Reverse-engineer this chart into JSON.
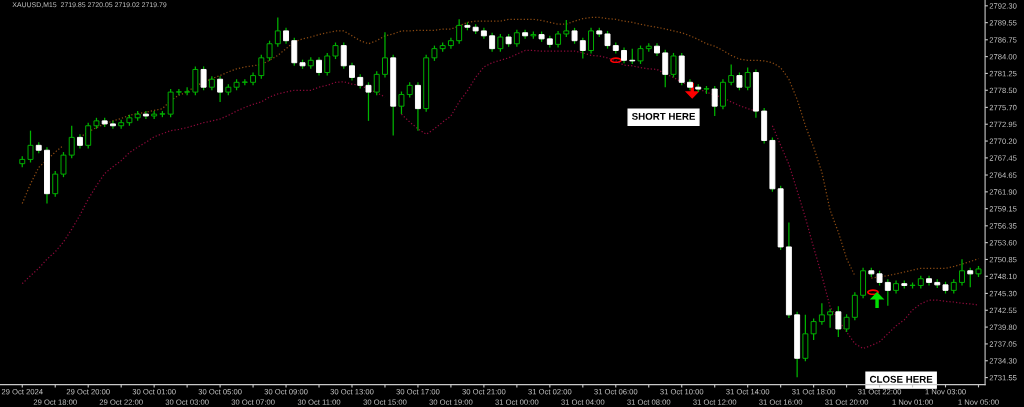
{
  "chart_data": {
    "type": "candlestick",
    "title": "XAUUSD,M15  2719.85 2720.05 2719.02 2719.79",
    "categories": [
      "29 Oct 2024",
      null,
      null,
      null,
      "29 Oct 18:00",
      null,
      null,
      null,
      "29 Oct 20:00",
      null,
      null,
      null,
      "29 Oct 22:00",
      null,
      null,
      null,
      "30 Oct 01:00",
      null,
      null,
      null,
      "30 Oct 03:00",
      null,
      null,
      null,
      "30 Oct 05:00",
      null,
      null,
      null,
      "30 Oct 07:00",
      null,
      null,
      null,
      "30 Oct 09:00",
      null,
      null,
      null,
      "30 Oct 11:00",
      null,
      null,
      null,
      "30 Oct 13:00",
      null,
      null,
      null,
      "30 Oct 15:00",
      null,
      null,
      null,
      "30 Oct 17:00",
      null,
      null,
      null,
      "30 Oct 19:00",
      null,
      null,
      null,
      "30 Oct 21:00",
      null,
      null,
      null,
      "31 Oct 00:00",
      null,
      null,
      null,
      "31 Oct 02:00",
      null,
      null,
      null,
      "31 Oct 04:00",
      null,
      null,
      null,
      "31 Oct 06:00",
      null,
      null,
      null,
      "31 Oct 08:00",
      null,
      null,
      null,
      "31 Oct 10:00",
      null,
      null,
      null,
      "31 Oct 12:00",
      null,
      null,
      null,
      "31 Oct 14:00",
      null,
      null,
      null,
      "31 Oct 16:00",
      null,
      null,
      null,
      "31 Oct 18:00",
      null,
      null,
      null,
      "31 Oct 20:00",
      null,
      null,
      null,
      "31 Oct 22:00",
      null,
      null,
      null,
      "1 Nov 01:00",
      null,
      null,
      null,
      "1 Nov 03:00",
      null,
      null,
      null,
      "1 Nov 05:00"
    ],
    "ohlc": [
      [
        2766.5,
        2767.7,
        2765.9,
        2767.2
      ],
      [
        2767.2,
        2771.9,
        2766.7,
        2769.5
      ],
      [
        2769.5,
        2770.0,
        2768.2,
        2768.7
      ],
      [
        2768.7,
        2769.2,
        2760.0,
        2761.6
      ],
      [
        2761.6,
        2765.3,
        2761.1,
        2764.8
      ],
      [
        2764.8,
        2768.4,
        2764.3,
        2767.9
      ],
      [
        2767.9,
        2772.7,
        2767.4,
        2770.8
      ],
      [
        2770.8,
        2771.3,
        2769.0,
        2769.5
      ],
      [
        2769.5,
        2773.2,
        2769.0,
        2772.7
      ],
      [
        2772.7,
        2774.0,
        2772.2,
        2773.5
      ],
      [
        2773.5,
        2774.0,
        2772.5,
        2773.0
      ],
      [
        2773.0,
        2773.5,
        2772.2,
        2772.7
      ],
      [
        2772.7,
        2773.7,
        2772.2,
        2773.2
      ],
      [
        2773.2,
        2774.5,
        2772.7,
        2774.0
      ],
      [
        2774.0,
        2775.1,
        2773.5,
        2774.6
      ],
      [
        2774.6,
        2775.1,
        2773.8,
        2774.3
      ],
      [
        2774.3,
        2775.1,
        2773.8,
        2774.6
      ],
      [
        2774.6,
        2775.1,
        2774.1,
        2774.6
      ],
      [
        2774.6,
        2778.7,
        2774.1,
        2778.2
      ],
      [
        2778.2,
        2778.7,
        2777.7,
        2778.2
      ],
      [
        2778.2,
        2779.0,
        2777.7,
        2778.2
      ],
      [
        2778.2,
        2782.4,
        2777.7,
        2781.9
      ],
      [
        2781.9,
        2782.4,
        2778.5,
        2779.0
      ],
      [
        2779.0,
        2780.8,
        2778.5,
        2780.3
      ],
      [
        2780.3,
        2780.8,
        2776.6,
        2778.2
      ],
      [
        2778.2,
        2779.5,
        2777.7,
        2779.0
      ],
      [
        2779.0,
        2780.3,
        2778.5,
        2779.8
      ],
      [
        2779.8,
        2780.3,
        2779.3,
        2779.8
      ],
      [
        2779.8,
        2781.4,
        2779.3,
        2780.9
      ],
      [
        2780.9,
        2784.3,
        2780.4,
        2783.8
      ],
      [
        2783.8,
        2786.6,
        2783.3,
        2786.1
      ],
      [
        2786.1,
        2790.4,
        2785.6,
        2788.2
      ],
      [
        2788.2,
        2788.7,
        2786.1,
        2786.6
      ],
      [
        2786.6,
        2787.1,
        2782.5,
        2783.0
      ],
      [
        2783.0,
        2783.5,
        2782.0,
        2782.5
      ],
      [
        2782.5,
        2783.9,
        2782.0,
        2783.4
      ],
      [
        2783.4,
        2783.9,
        2780.9,
        2781.4
      ],
      [
        2781.4,
        2784.6,
        2780.9,
        2784.1
      ],
      [
        2784.1,
        2786.3,
        2783.6,
        2785.8
      ],
      [
        2785.8,
        2786.3,
        2782.0,
        2782.5
      ],
      [
        2782.5,
        2783.0,
        2780.1,
        2780.6
      ],
      [
        2780.6,
        2781.1,
        2778.8,
        2779.3
      ],
      [
        2779.3,
        2779.8,
        2773.5,
        2778.2
      ],
      [
        2778.2,
        2781.6,
        2777.7,
        2781.1
      ],
      [
        2781.1,
        2788.0,
        2780.6,
        2783.8
      ],
      [
        2783.8,
        2784.3,
        2771.1,
        2775.9
      ],
      [
        2775.9,
        2778.3,
        2774.6,
        2777.8
      ],
      [
        2777.8,
        2779.8,
        2777.3,
        2779.3
      ],
      [
        2779.3,
        2779.8,
        2771.9,
        2775.5
      ],
      [
        2775.5,
        2784.3,
        2775.0,
        2783.8
      ],
      [
        2783.8,
        2785.8,
        2783.3,
        2785.3
      ],
      [
        2785.3,
        2786.3,
        2784.8,
        2785.8
      ],
      [
        2785.8,
        2787.1,
        2785.3,
        2786.6
      ],
      [
        2786.6,
        2790.1,
        2786.1,
        2789.1
      ],
      [
        2789.1,
        2789.6,
        2788.3,
        2788.8
      ],
      [
        2788.8,
        2789.3,
        2787.7,
        2788.2
      ],
      [
        2788.2,
        2788.7,
        2786.9,
        2787.4
      ],
      [
        2787.4,
        2787.9,
        2784.8,
        2785.3
      ],
      [
        2785.3,
        2787.7,
        2784.8,
        2787.2
      ],
      [
        2787.2,
        2787.7,
        2785.6,
        2786.1
      ],
      [
        2786.1,
        2788.4,
        2785.6,
        2787.9
      ],
      [
        2787.9,
        2788.4,
        2786.9,
        2787.4
      ],
      [
        2787.4,
        2788.1,
        2786.9,
        2787.6
      ],
      [
        2787.6,
        2788.1,
        2786.4,
        2786.9
      ],
      [
        2786.9,
        2787.4,
        2785.5,
        2786.0
      ],
      [
        2786.0,
        2788.2,
        2785.5,
        2787.7
      ],
      [
        2787.7,
        2790.0,
        2787.2,
        2788.2
      ],
      [
        2788.2,
        2788.7,
        2786.1,
        2786.6
      ],
      [
        2786.6,
        2787.1,
        2783.7,
        2785.0
      ],
      [
        2785.0,
        2788.7,
        2784.5,
        2788.2
      ],
      [
        2788.2,
        2788.7,
        2787.2,
        2787.7
      ],
      [
        2787.7,
        2788.2,
        2785.3,
        2785.8
      ],
      [
        2785.8,
        2786.3,
        2784.5,
        2785.0
      ],
      [
        2785.0,
        2785.5,
        2782.9,
        2783.4
      ],
      [
        2783.4,
        2785.3,
        2782.8,
        2783.3
      ],
      [
        2783.3,
        2785.8,
        2782.8,
        2785.3
      ],
      [
        2785.3,
        2786.2,
        2784.8,
        2785.7
      ],
      [
        2785.7,
        2786.2,
        2784.1,
        2784.6
      ],
      [
        2784.6,
        2785.1,
        2779.0,
        2781.1
      ],
      [
        2781.1,
        2784.6,
        2780.6,
        2784.1
      ],
      [
        2784.1,
        2784.6,
        2779.3,
        2779.8
      ],
      [
        2779.8,
        2780.3,
        2778.5,
        2779.0
      ],
      [
        2779.0,
        2779.5,
        2778.2,
        2778.7
      ],
      [
        2778.7,
        2779.2,
        2777.9,
        2778.7
      ],
      [
        2778.7,
        2779.2,
        2774.3,
        2775.9
      ],
      [
        2775.9,
        2780.3,
        2775.4,
        2779.8
      ],
      [
        2779.8,
        2782.7,
        2779.3,
        2780.9
      ],
      [
        2780.9,
        2781.4,
        2778.5,
        2779.0
      ],
      [
        2779.0,
        2782.2,
        2778.5,
        2781.4
      ],
      [
        2781.4,
        2781.9,
        2774.0,
        2775.1
      ],
      [
        2775.1,
        2775.6,
        2769.8,
        2770.3
      ],
      [
        2770.3,
        2770.8,
        2761.9,
        2762.4
      ],
      [
        2762.4,
        2762.9,
        2752.4,
        2752.9
      ],
      [
        2752.9,
        2756.9,
        2741.3,
        2741.8
      ],
      [
        2741.8,
        2742.3,
        2731.6,
        2734.7
      ],
      [
        2734.7,
        2741.8,
        2734.2,
        2738.7
      ],
      [
        2738.7,
        2741.2,
        2737.7,
        2740.7
      ],
      [
        2740.7,
        2743.7,
        2740.2,
        2741.8
      ],
      [
        2741.8,
        2742.8,
        2739.7,
        2742.3
      ],
      [
        2742.3,
        2743.2,
        2738.2,
        2739.5
      ],
      [
        2739.5,
        2741.9,
        2739.0,
        2741.4
      ],
      [
        2741.4,
        2745.5,
        2740.9,
        2745.0
      ],
      [
        2745.0,
        2749.5,
        2744.5,
        2749.0
      ],
      [
        2749.0,
        2749.5,
        2748.0,
        2748.5
      ],
      [
        2748.5,
        2749.0,
        2746.6,
        2747.1
      ],
      [
        2747.1,
        2747.6,
        2743.3,
        2745.8
      ],
      [
        2745.8,
        2747.4,
        2745.3,
        2746.9
      ],
      [
        2746.9,
        2747.4,
        2746.1,
        2746.6
      ],
      [
        2746.6,
        2747.1,
        2746.1,
        2746.6
      ],
      [
        2746.6,
        2748.2,
        2746.1,
        2747.7
      ],
      [
        2747.7,
        2748.2,
        2746.6,
        2747.1
      ],
      [
        2747.1,
        2747.6,
        2746.2,
        2746.7
      ],
      [
        2746.7,
        2747.2,
        2745.3,
        2745.8
      ],
      [
        2745.8,
        2747.6,
        2745.3,
        2747.1
      ],
      [
        2747.1,
        2750.9,
        2746.6,
        2749.0
      ],
      [
        2749.0,
        2749.5,
        2746.3,
        2748.5
      ],
      [
        2748.5,
        2749.8,
        2748.0,
        2749.3
      ]
    ],
    "series": [
      {
        "type": "line",
        "color": "#8b4a12",
        "values": [
          2760.0,
          2763.2,
          2765.9,
          2767.1,
          2768.4,
          2769.5,
          null,
          2770.8,
          2771.7,
          2772.4,
          2773.0,
          2773.5,
          2773.9,
          2774.4,
          2774.7,
          2774.9,
          2775.2,
          2775.5,
          2776.8,
          2777.7,
          2778.2,
          2779.2,
          2779.8,
          2780.4,
          2780.9,
          2781.5,
          2782.0,
          2782.3,
          2782.5,
          2782.7,
          2783.4,
          2784.2,
          2785.3,
          2786.4,
          2786.9,
          2787.2,
          2787.6,
          2787.9,
          2788.2,
          2788.2,
          2787.4,
          2786.6,
          2786.1,
          2786.6,
          2787.4,
          2787.7,
          2788.2,
          2788.2,
          2788.3,
          2788.3,
          2788.3,
          2788.5,
          2788.5,
          2789.0,
          2789.6,
          2789.8,
          2789.8,
          2789.8,
          2789.8,
          2790.1,
          2790.1,
          2790.1,
          2790.1,
          2789.9,
          2789.6,
          2789.3,
          2789.3,
          2789.8,
          2790.2,
          2790.4,
          2790.4,
          2790.2,
          2790.1,
          2789.8,
          2789.6,
          2789.3,
          2789.0,
          2788.8,
          2788.5,
          2788.2,
          2787.9,
          2787.4,
          2786.8,
          2786.1,
          2785.7,
          2785.0,
          2784.2,
          2783.6,
          2783.4,
          2783.4,
          2783.3,
          2783.0,
          2782.2,
          2780.3,
          2777.0,
          2772.7,
          2769.2,
          2765.1,
          2758.9,
          2755.3,
          2751.0,
          2748.2,
          null,
          2747.8,
          2748.0,
          2748.2,
          2748.5,
          2748.8,
          2749.1,
          2749.4,
          2749.4,
          2749.4,
          2749.4,
          2749.7,
          2750.1,
          2750.5,
          2751.0
        ]
      },
      {
        "type": "line",
        "color": "#8b0a3a",
        "values": [
          2746.9,
          2748.2,
          2749.4,
          2750.9,
          2752.1,
          2753.7,
          2755.8,
          2758.1,
          2760.7,
          2762.9,
          2764.9,
          2766.0,
          2767.0,
          2768.3,
          2769.2,
          2770.0,
          2770.9,
          2771.4,
          2771.9,
          2772.1,
          2772.4,
          2772.8,
          2773.2,
          2773.5,
          2773.8,
          2774.4,
          2775.1,
          2775.7,
          2776.2,
          2776.6,
          2777.4,
          2777.9,
          2778.2,
          2778.5,
          2778.5,
          2778.5,
          2779.0,
          2779.3,
          2779.8,
          2779.9,
          2779.5,
          2779.3,
          2778.7,
          2778.1,
          2777.4,
          null,
          2774.6,
          2773.3,
          2772.2,
          2771.3,
          2772.2,
          2773.3,
          2774.3,
          2776.6,
          2778.4,
          2780.6,
          2782.3,
          2783.0,
          2783.4,
          2783.8,
          2784.4,
          2785.0,
          2785.0,
          2784.9,
          2784.9,
          2784.9,
          2784.9,
          2784.9,
          2784.6,
          2784.2,
          2784.1,
          2783.8,
          2783.3,
          2782.6,
          2782.5,
          2782.2,
          2782.0,
          2781.9,
          2781.2,
          2780.6,
          2779.8,
          2779.2,
          2778.7,
          2778.2,
          2777.7,
          2777.3,
          2776.6,
          2776.0,
          2775.5,
          2775.1,
          null,
          2772.7,
          2769.5,
          2766.4,
          2762.1,
          2757.7,
          2752.8,
          2748.2,
          2743.1,
          2741.0,
          2739.0,
          2737.1,
          2736.3,
          2736.8,
          2737.4,
          2738.7,
          2740.0,
          2741.0,
          2742.6,
          2743.6,
          2744.2,
          2744.2,
          2744.0,
          2743.9,
          2743.7,
          2743.6,
          2743.4
        ]
      }
    ],
    "line_style": "dotted",
    "ylim": [
      2730.4,
      2793.25
    ],
    "yticks": [
      {
        "value": 2792.3,
        "label": "2792.30"
      },
      2789.55,
      2786.75,
      {
        "value": 2784.0,
        "label": "2784.00"
      },
      2781.25,
      {
        "value": 2778.5,
        "label": "2778.50"
      },
      {
        "value": 2775.7,
        "label": "2775.70"
      },
      2772.95,
      {
        "value": 2770.2,
        "label": "2770.20"
      },
      2767.45,
      2764.65,
      {
        "value": 2761.9,
        "label": "2761.90"
      },
      2759.15,
      2756.35,
      {
        "value": 2753.6,
        "label": "2753.60"
      },
      2750.85,
      {
        "value": 2748.1,
        "label": "2748.10"
      },
      {
        "value": 2745.3,
        "label": "2745.30"
      },
      2742.55,
      {
        "value": 2739.8,
        "label": "2739.80"
      },
      2737.05,
      {
        "value": 2734.3,
        "label": "2734.30"
      },
      2731.55
    ],
    "annotations": [
      "SHORT HERE",
      "CLOSE HERE"
    ],
    "grid": false,
    "legend": false
  }
}
